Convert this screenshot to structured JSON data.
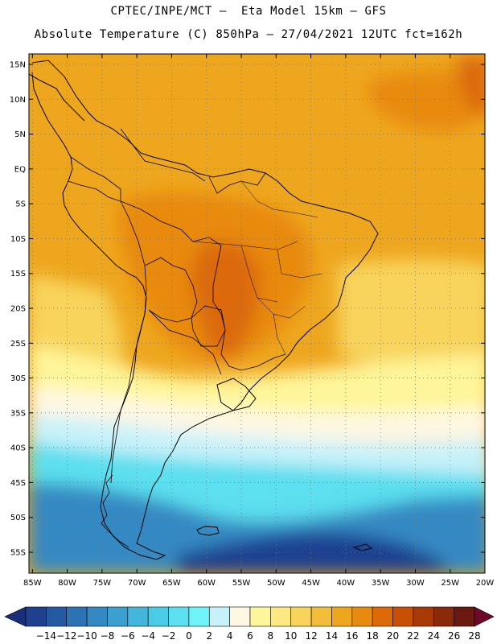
{
  "header": {
    "line1": "CPTEC/INPE/MCT –  Eta Model 15km – GFS",
    "line2": "Absolute Temperature (C) 850hPa – 27/04/2021 12UTC fct=162h"
  },
  "axes": {
    "lat_labels": [
      "15N",
      "10N",
      "5N",
      "EQ",
      "5S",
      "10S",
      "15S",
      "20S",
      "25S",
      "30S",
      "35S",
      "40S",
      "45S",
      "50S",
      "55S"
    ],
    "lat_values": [
      15,
      10,
      5,
      0,
      -5,
      -10,
      -15,
      -20,
      -25,
      -30,
      -35,
      -40,
      -45,
      -50,
      -55
    ],
    "lon_labels": [
      "85W",
      "80W",
      "75W",
      "70W",
      "65W",
      "60W",
      "55W",
      "50W",
      "45W",
      "40W",
      "35W",
      "30W",
      "25W",
      "20W"
    ],
    "lon_values": [
      -85,
      -80,
      -75,
      -70,
      -65,
      -60,
      -55,
      -50,
      -45,
      -40,
      -35,
      -30,
      -25,
      -20
    ],
    "lat_range": [
      -58,
      16.5
    ],
    "lon_range": [
      -85.5,
      -20
    ]
  },
  "colorbar": {
    "labels": [
      "-14",
      "-12",
      "-10",
      "-8",
      "-6",
      "-4",
      "-2",
      "0",
      "2",
      "4",
      "6",
      "8",
      "10",
      "12",
      "14",
      "16",
      "18",
      "20",
      "22",
      "24",
      "26",
      "28"
    ],
    "colors": [
      "#1f3f8f",
      "#2659a3",
      "#2d72b3",
      "#3589c2",
      "#3c9fcf",
      "#44b6dc",
      "#4ccbe6",
      "#5cdfef",
      "#6ef3f8",
      "#c8f2fa",
      "#fff8e3",
      "#fff59a",
      "#fde882",
      "#f8d45c",
      "#f2bd3a",
      "#eea61f",
      "#e88a10",
      "#dc6a08",
      "#c94f05",
      "#aa3a05",
      "#8a2a08",
      "#6a1a10"
    ],
    "under_color": "#1a2f7a",
    "over_color": "#6b0a2a"
  },
  "palette": {
    "ocean_deep": "#1f3f8f",
    "ocean_mid": "#3589c2",
    "cyan": "#5cdfef",
    "pale": "#c8f2fa",
    "cream": "#fff8e3",
    "yellow": "#f8d45c",
    "orange": "#eea61f",
    "dark_orange": "#e88a10",
    "hot": "#dc6a08"
  }
}
